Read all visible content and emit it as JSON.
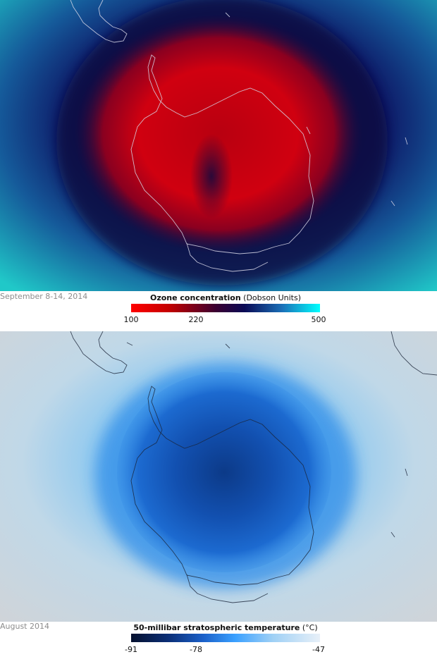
{
  "ozone": {
    "date": "September 8-14, 2014",
    "legend_title": "Ozone concentration",
    "legend_unit": " (Dobson Units)",
    "ticks": [
      "100",
      "220",
      "500"
    ],
    "tick_values": [
      100,
      220,
      500
    ],
    "range": [
      100,
      500
    ],
    "colors": {
      "low": "#ff0000",
      "mid": "#0a0a55",
      "high": "#00ffff"
    }
  },
  "temperature": {
    "date": "August 2014",
    "legend_title": "50-millibar stratospheric temperature",
    "legend_unit": " (°C)",
    "ticks": [
      "-91",
      "-78",
      "-47"
    ],
    "tick_values": [
      -91,
      -78,
      -47
    ],
    "range": [
      -91,
      -47
    ],
    "colors": {
      "low": "#05102e",
      "mid": "#3aa0ff",
      "high": "#e8f0f8"
    }
  }
}
